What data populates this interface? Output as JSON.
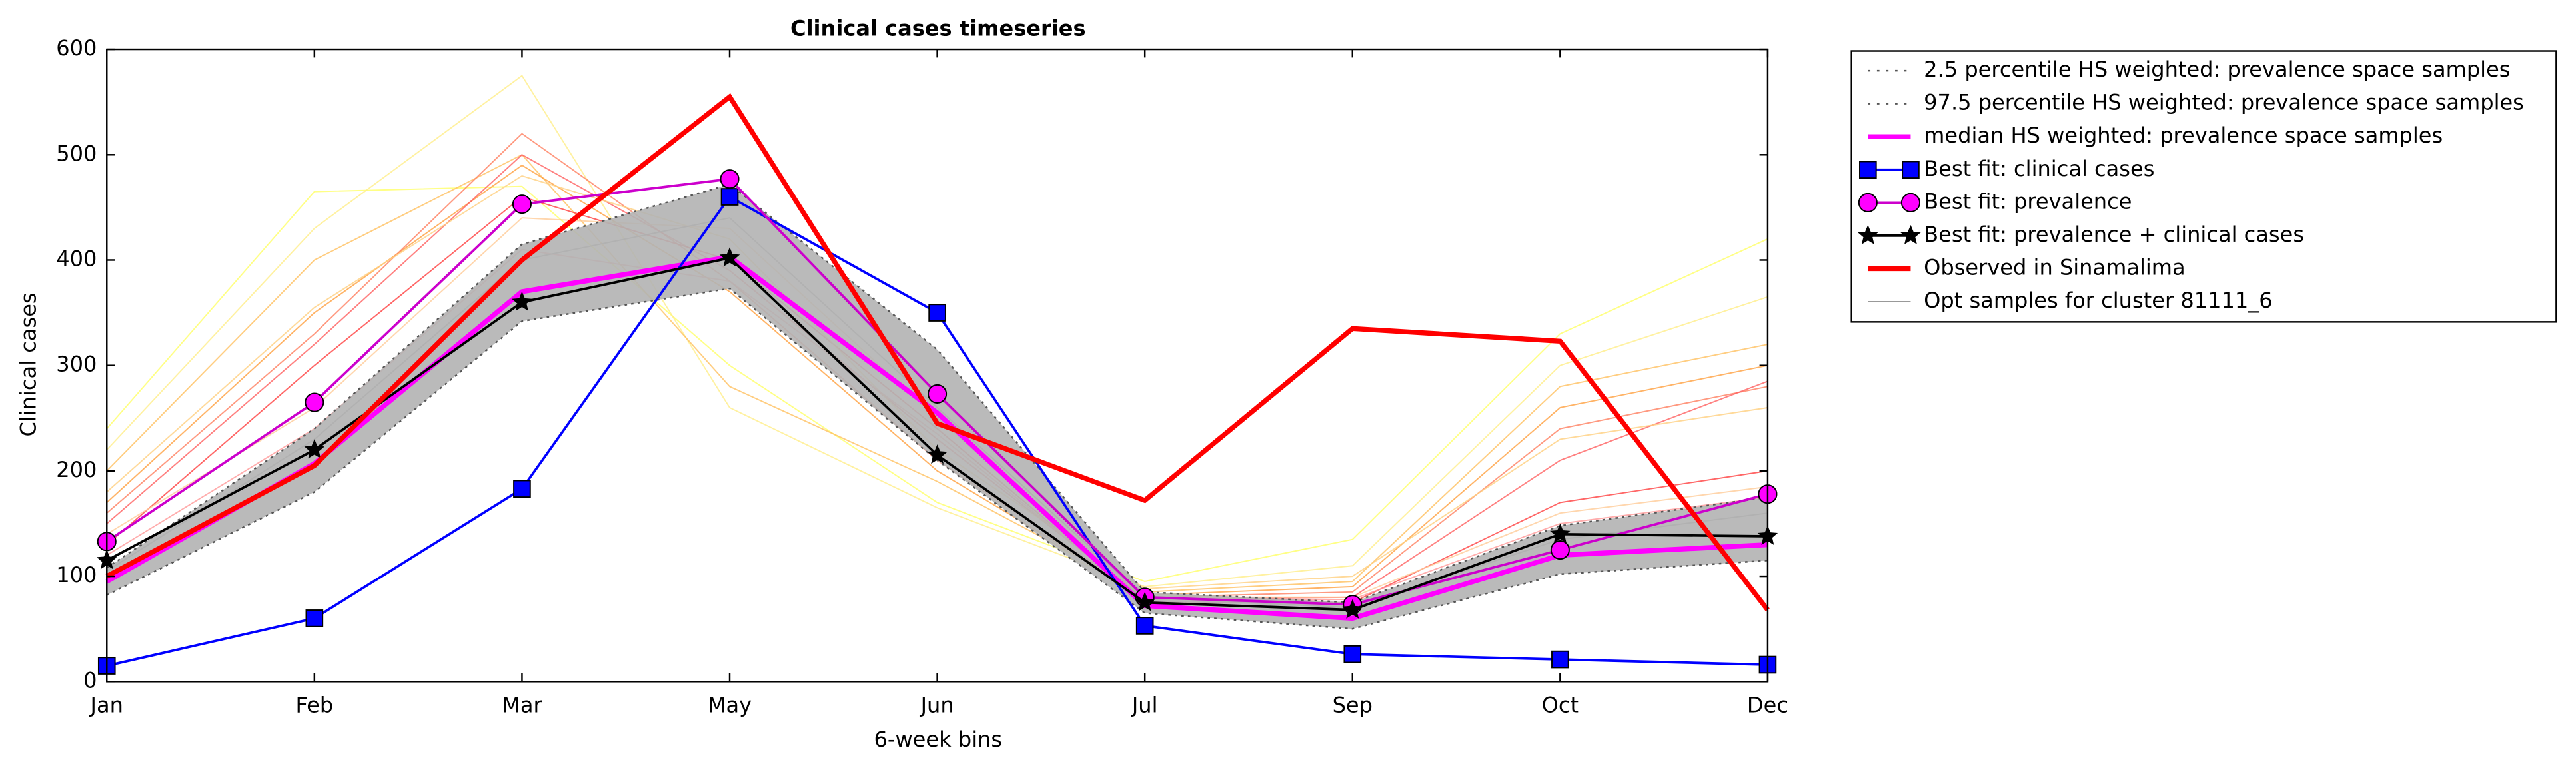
{
  "chart_data": {
    "type": "line",
    "title": "Clinical cases timeseries",
    "x_label": "6-week bins",
    "y_label": "Clinical cases",
    "categories": [
      "Jan",
      "Feb",
      "Mar",
      "May",
      "Jun",
      "Jul",
      "Sep",
      "Oct",
      "Dec"
    ],
    "ylim": [
      0,
      600
    ],
    "yticks": [
      0,
      100,
      200,
      300,
      400,
      500,
      600
    ],
    "legend": "outside upper right",
    "band_color": "#b3b3b3",
    "samples": {
      "name": "Opt samples for cluster 81111_6",
      "color": "#999999",
      "lines": [
        {
          "color": "#ffff66",
          "values": [
            240,
            465,
            470,
            300,
            170,
            95,
            135,
            330,
            420
          ]
        },
        {
          "color": "#ffee88",
          "values": [
            220,
            430,
            575,
            260,
            165,
            90,
            110,
            300,
            365
          ]
        },
        {
          "color": "#ffc060",
          "values": [
            200,
            400,
            500,
            280,
            190,
            85,
            95,
            280,
            320
          ]
        },
        {
          "color": "#ffa040",
          "values": [
            170,
            350,
            490,
            370,
            200,
            82,
            90,
            260,
            300
          ]
        },
        {
          "color": "#ff8060",
          "values": [
            160,
            330,
            520,
            380,
            210,
            80,
            85,
            240,
            280
          ]
        },
        {
          "color": "#ff6060",
          "values": [
            150,
            320,
            500,
            390,
            230,
            78,
            80,
            210,
            285
          ]
        },
        {
          "color": "#ff4040",
          "values": [
            130,
            300,
            460,
            400,
            240,
            75,
            75,
            170,
            200
          ]
        },
        {
          "color": "#ffd080",
          "values": [
            180,
            355,
            480,
            420,
            220,
            88,
            100,
            230,
            260
          ]
        },
        {
          "color": "#ffcc99",
          "values": [
            140,
            260,
            440,
            430,
            250,
            80,
            80,
            160,
            185
          ]
        },
        {
          "color": "#ff9999",
          "values": [
            120,
            240,
            410,
            380,
            235,
            76,
            78,
            150,
            175
          ]
        },
        {
          "color": "#888888",
          "values": [
            105,
            230,
            400,
            440,
            260,
            80,
            70,
            135,
            160
          ]
        }
      ]
    },
    "series": [
      {
        "name": "2.5 percentile HS weighted: prevalence space samples",
        "color": "#555555",
        "linestyle": "dotted",
        "linewidth": 1,
        "marker": null,
        "values": [
          82,
          180,
          342,
          373,
          210,
          65,
          50,
          102,
          115
        ]
      },
      {
        "name": "97.5 percentile HS weighted: prevalence space samples",
        "color": "#555555",
        "linestyle": "dotted",
        "linewidth": 1,
        "marker": null,
        "values": [
          108,
          240,
          415,
          472,
          315,
          85,
          75,
          148,
          175
        ]
      },
      {
        "name": "median HS weighted: prevalence space samples",
        "color": "#ff00ff",
        "linestyle": "solid",
        "linewidth": 3,
        "marker": null,
        "values": [
          95,
          207,
          370,
          403,
          255,
          72,
          60,
          120,
          130
        ]
      },
      {
        "name": "Best fit: clinical cases",
        "color": "#0000ff",
        "linestyle": "solid",
        "linewidth": 1.5,
        "marker": "square",
        "values": [
          15,
          60,
          183,
          460,
          350,
          53,
          26,
          21,
          16
        ]
      },
      {
        "name": "Best fit: prevalence",
        "color": "#cc00cc",
        "linestyle": "solid",
        "linewidth": 1.5,
        "marker": "circle",
        "values": [
          133,
          265,
          453,
          477,
          273,
          80,
          73,
          125,
          178
        ]
      },
      {
        "name": "Best fit: prevalence + clinical cases",
        "color": "#000000",
        "linestyle": "solid",
        "linewidth": 1.5,
        "marker": "star",
        "values": [
          115,
          220,
          360,
          402,
          215,
          75,
          68,
          140,
          138
        ]
      },
      {
        "name": "Observed in Sinamalima",
        "color": "#ff0000",
        "linestyle": "solid",
        "linewidth": 3,
        "marker": null,
        "values": [
          100,
          205,
          400,
          555,
          245,
          172,
          335,
          323,
          68
        ]
      }
    ]
  }
}
